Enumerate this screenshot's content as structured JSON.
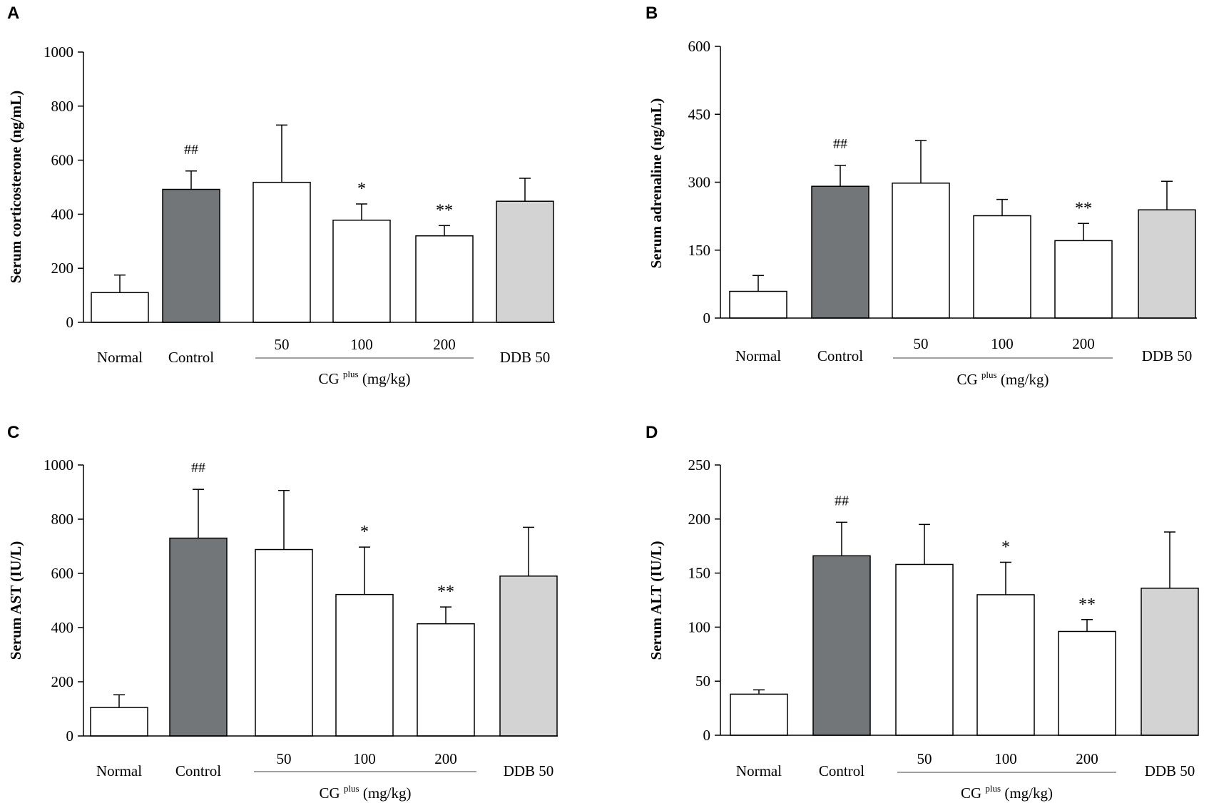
{
  "figure": {
    "group_caption_prefix": "CG",
    "group_caption_sup": "plus",
    "group_caption_suffix": "(mg/kg)"
  },
  "colors": {
    "normal_bar": "#ffffff",
    "control_bar": "#737678",
    "cg_bar": "#ffffff",
    "ddb_bar": "#d3d3d3",
    "bar_stroke": "#000000",
    "group_line": "#808080"
  },
  "chart_data": [
    {
      "panel": "A",
      "type": "bar",
      "ylabel": "Serum corticosterone  (ng/mL)",
      "ylim": [
        0,
        1000
      ],
      "yticks": [
        0,
        200,
        400,
        600,
        800,
        1000
      ],
      "ytick_labels": [
        "0",
        "200",
        "400",
        "600",
        "800",
        "1000"
      ],
      "categories": [
        "Normal",
        "Control",
        "50",
        "100",
        "200",
        "DDB 50"
      ],
      "values": [
        110,
        492,
        518,
        378,
        320,
        448
      ],
      "errors": [
        65,
        68,
        212,
        60,
        38,
        85
      ],
      "annotations": [
        "",
        "##",
        "",
        "*",
        "**",
        ""
      ]
    },
    {
      "panel": "B",
      "type": "bar",
      "ylabel": "Serum adrenaline  (ng/mL)",
      "ylim": [
        0,
        600
      ],
      "yticks": [
        0,
        150,
        300,
        450,
        600
      ],
      "ytick_labels": [
        "0",
        "150",
        "300",
        "450",
        "600"
      ],
      "categories": [
        "Normal",
        "Control",
        "50",
        "100",
        "200",
        "DDB 50"
      ],
      "values": [
        59,
        291,
        298,
        226,
        171,
        239
      ],
      "errors": [
        35,
        46,
        94,
        36,
        38,
        63
      ],
      "annotations": [
        "",
        "##",
        "",
        "",
        "**",
        ""
      ]
    },
    {
      "panel": "C",
      "type": "bar",
      "ylabel": "Serum AST  (IU/L)",
      "ylim": [
        0,
        1000
      ],
      "yticks": [
        0,
        200,
        400,
        600,
        800,
        1000
      ],
      "ytick_labels": [
        "0",
        "200",
        "400",
        "600",
        "800",
        "1000"
      ],
      "categories": [
        "Normal",
        "Control",
        "50",
        "100",
        "200",
        "DDB 50"
      ],
      "values": [
        105,
        730,
        688,
        522,
        414,
        590
      ],
      "errors": [
        47,
        180,
        218,
        175,
        62,
        180
      ],
      "annotations": [
        "",
        "##",
        "",
        "*",
        "**",
        ""
      ]
    },
    {
      "panel": "D",
      "type": "bar",
      "ylabel": "Serum ALT  (IU/L)",
      "ylim": [
        0,
        250
      ],
      "yticks": [
        0,
        50,
        100,
        150,
        200,
        250
      ],
      "ytick_labels": [
        "0",
        "50",
        "100",
        "150",
        "200",
        "250"
      ],
      "categories": [
        "Normal",
        "Control",
        "50",
        "100",
        "200",
        "DDB 50"
      ],
      "values": [
        38,
        166,
        158,
        130,
        96,
        136
      ],
      "errors": [
        4,
        31,
        37,
        30,
        11,
        52
      ],
      "annotations": [
        "",
        "##",
        "",
        "*",
        "**",
        ""
      ]
    }
  ]
}
